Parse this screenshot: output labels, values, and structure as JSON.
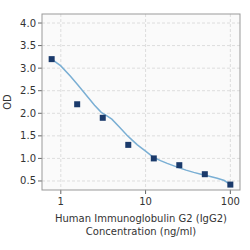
{
  "chart_data": {
    "type": "line",
    "xlabel": [
      "Human Immunoglobulin G2 (IgG2)",
      "Concentration (ng/ml)"
    ],
    "ylabel": "OD",
    "log": "x",
    "grid": true,
    "xlim": [
      0.6,
      130
    ],
    "ylim": [
      0.3,
      4.2
    ],
    "xticks": [
      1,
      10,
      100
    ],
    "yticks": [
      0.5,
      {
        "value": 1,
        "label": "1.0"
      },
      1.5,
      {
        "value": 2,
        "label": "2.0"
      },
      2.5,
      {
        "value": 3,
        "label": "3.0"
      },
      3.5,
      {
        "value": 4,
        "label": "4.0"
      }
    ],
    "series": [
      {
        "type": "line",
        "color": "#7aafd4",
        "x": [
          0.78,
          1.0,
          1.3,
          1.6,
          2.0,
          2.5,
          3.0,
          3.5,
          4.0,
          5.0,
          6.0,
          7.0,
          8.0,
          10.0,
          12.5,
          15.0,
          18.0,
          22.0,
          25.0,
          30.0,
          37.0,
          45.0,
          55.0,
          70.0,
          85.0,
          100.0
        ],
        "values": [
          3.2,
          3.05,
          2.82,
          2.62,
          2.4,
          2.18,
          2.02,
          1.94,
          1.87,
          1.68,
          1.52,
          1.4,
          1.3,
          1.16,
          1.02,
          0.95,
          0.89,
          0.83,
          0.79,
          0.74,
          0.69,
          0.65,
          0.61,
          0.56,
          0.51,
          0.42
        ]
      },
      {
        "type": "scatter",
        "color": "#1a3a6b",
        "marker": "square",
        "x": [
          0.78,
          1.56,
          3.125,
          6.25,
          12.5,
          25,
          50,
          100
        ],
        "values": [
          3.2,
          2.2,
          1.9,
          1.3,
          1.0,
          0.85,
          0.65,
          0.42
        ]
      }
    ]
  }
}
